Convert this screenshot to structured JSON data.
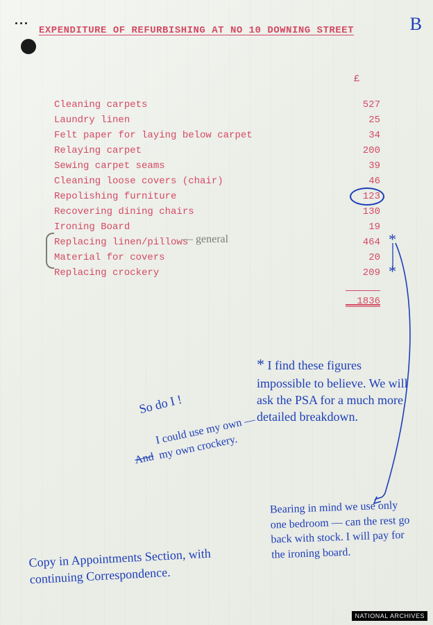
{
  "corner_letter": "B",
  "title": "EXPENDITURE OF REFURBISHING AT NO 10 DOWNING STREET",
  "currency_symbol": "£",
  "items": [
    {
      "label": "Cleaning carpets",
      "amount": "527"
    },
    {
      "label": "Laundry linen",
      "amount": "25"
    },
    {
      "label": "Felt paper for laying below carpet",
      "amount": "34"
    },
    {
      "label": "Relaying carpet",
      "amount": "200"
    },
    {
      "label": "Sewing carpet seams",
      "amount": "39"
    },
    {
      "label": "Cleaning loose covers (chair)",
      "amount": "46"
    },
    {
      "label": "Repolishing furniture",
      "amount": "123"
    },
    {
      "label": "Recovering dining chairs",
      "amount": "130"
    },
    {
      "label": "Ironing Board",
      "amount": "19"
    },
    {
      "label": "Replacing linen/pillows",
      "amount": "464"
    },
    {
      "label": "Material for covers",
      "amount": "20"
    },
    {
      "label": "Replacing crockery",
      "amount": "209"
    }
  ],
  "total": "1836",
  "pencil_note": "— general",
  "annotations": {
    "asterisk_note": "I find these figures impossible to believe. We will ask the PSA for a much more detailed breakdown.",
    "so_do_i": "So do I !",
    "and_strike": "And",
    "could_use": "I could use my own — my own crockery.",
    "bottom_right": "Bearing in mind we use only one bedroom — can the rest go back with stock. I will pay for the ironing board.",
    "copy_note": "Copy in Appointments Section, with continuing Correspondence."
  },
  "footer_credit": "NATIONAL ARCHIVES",
  "colors": {
    "type_red": "#d24a63",
    "pen_blue": "#1c3fb8",
    "pencil": "#7c7c72",
    "paper": "#eef0ee"
  }
}
